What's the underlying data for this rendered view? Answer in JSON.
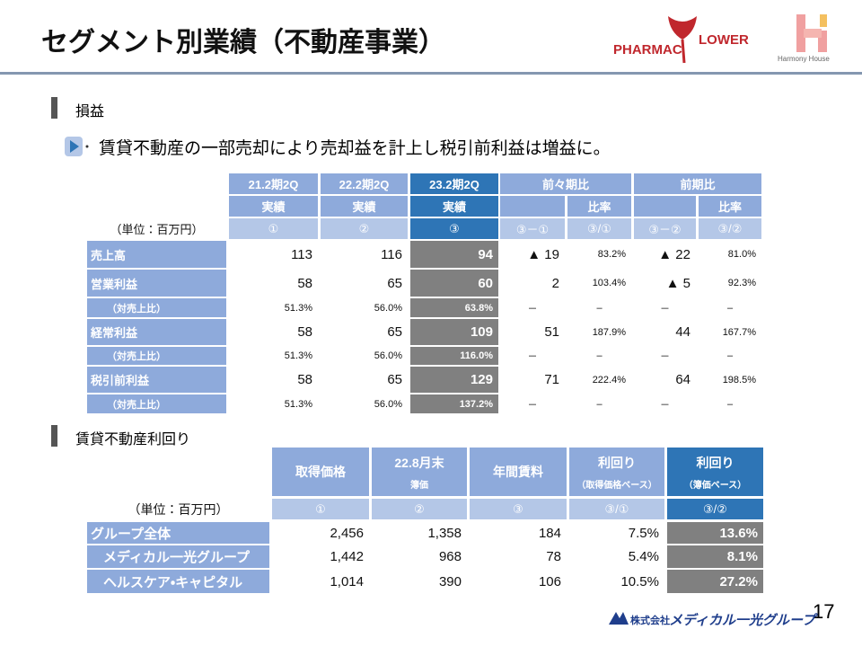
{
  "header": {
    "title": "セグメント別業績（不動産事業）"
  },
  "logo": {
    "pharmac": "PHARMAC",
    "flower": "LOWER",
    "harmony": "Harmony House"
  },
  "pl": {
    "heading": "損益",
    "bullet": "賃貸不動産の一部売却により売却益を計上し税引前利益は増益に。",
    "table": {
      "header_row1": [
        "21.2期2Q",
        "22.2期2Q",
        "23.2期2Q",
        "前々期比",
        "前期比"
      ],
      "header_row2": [
        "実績",
        "実績",
        "実績",
        "比率",
        "比率"
      ],
      "unit": "（単位：百万円）",
      "col_numbers": [
        "①",
        "②",
        "③",
        "③－①",
        "③/①",
        "③－②",
        "③/②"
      ],
      "rows": [
        {
          "label": "売上高",
          "values": [
            "113",
            "116",
            "94",
            "▲ 19",
            "83.2%",
            "▲ 22",
            "81.0%"
          ]
        },
        {
          "label": "営業利益",
          "values": [
            "58",
            "65",
            "60",
            "2",
            "103.4%",
            "▲ 5",
            "92.3%"
          ]
        },
        {
          "label": "（対売上比）",
          "values": [
            "51.3%",
            "56.0%",
            "63.8%",
            "－",
            "–",
            "－",
            "–"
          ]
        },
        {
          "label": "経常利益",
          "values": [
            "58",
            "65",
            "109",
            "51",
            "187.9%",
            "44",
            "167.7%"
          ]
        },
        {
          "label": "（対売上比）",
          "values": [
            "51.3%",
            "56.0%",
            "116.0%",
            "－",
            "–",
            "－",
            "–"
          ]
        },
        {
          "label": "税引前利益",
          "values": [
            "58",
            "65",
            "129",
            "71",
            "222.4%",
            "64",
            "198.5%"
          ]
        },
        {
          "label": "（対売上比）",
          "values": [
            "51.3%",
            "56.0%",
            "137.2%",
            "－",
            "–",
            "－",
            "–"
          ]
        }
      ]
    }
  },
  "yield": {
    "heading": "賃貸不動産利回り",
    "table": {
      "headers": [
        [
          "取得価格"
        ],
        [
          "22.8月末",
          "簿価"
        ],
        [
          "年間賃料"
        ],
        [
          "利回り",
          "（取得価格ベース）"
        ],
        [
          "利回り",
          "（簿価ベース）"
        ]
      ],
      "unit": "（単位：百万円）",
      "col_numbers": [
        "①",
        "②",
        "③",
        "③/①",
        "③/②"
      ],
      "rows": [
        {
          "label": "グループ全体",
          "values": [
            "2,456",
            "1,358",
            "184",
            "7.5%",
            "13.6%"
          ]
        },
        {
          "label": "メディカル一光グループ",
          "values": [
            "1,442",
            "968",
            "78",
            "5.4%",
            "8.1%"
          ]
        },
        {
          "label": "ヘルスケア・キャピタル",
          "values": [
            "1,014",
            "390",
            "106",
            "10.5%",
            "27.2%"
          ]
        }
      ]
    }
  },
  "footer": {
    "page": "17",
    "company_prefix": "株式会社",
    "company": "メディカル一光グループ"
  }
}
